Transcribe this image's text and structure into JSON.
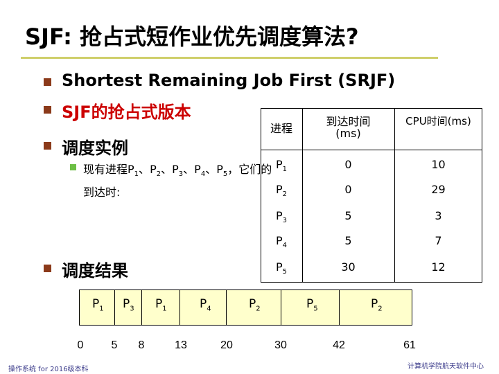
{
  "title": "SJF: 抢占式短作业优先调度算法?",
  "bullets": [
    {
      "text": "Shortest Remaining Job First (SRJF)",
      "color": "#000000"
    },
    {
      "text": "SJF的抢占式版本",
      "color": "#cc0000"
    },
    {
      "text": "调度实例"
    },
    {
      "text": "调度结果"
    }
  ],
  "example": {
    "line1_prefix": "现有进程",
    "line1_suffix": "，它们的",
    "line2": "到达时:",
    "procs": [
      {
        "label": "P",
        "sub": "1",
        "sep": "、"
      },
      {
        "label": "P",
        "sub": "2",
        "sep": "、"
      },
      {
        "label": "P",
        "sub": "3",
        "sep": "、"
      },
      {
        "label": "P",
        "sub": "4",
        "sep": "、"
      },
      {
        "label": "P",
        "sub": "5",
        "sep": ""
      }
    ]
  },
  "table": {
    "headers": {
      "process": "进程",
      "arrival": "到达时间",
      "arrival_unit": "(ms)",
      "burst": "CPU时间(ms)"
    },
    "rows": [
      {
        "p": "P",
        "sub": "1",
        "arrival": "0",
        "burst": "10"
      },
      {
        "p": "P",
        "sub": "2",
        "arrival": "0",
        "burst": "29"
      },
      {
        "p": "P",
        "sub": "3",
        "arrival": "5",
        "burst": "3"
      },
      {
        "p": "P",
        "sub": "4",
        "arrival": "5",
        "burst": "7"
      },
      {
        "p": "P",
        "sub": "5",
        "arrival": "30",
        "burst": "12"
      }
    ]
  },
  "gantt": {
    "segments": [
      {
        "p": "P",
        "sub": "1"
      },
      {
        "p": "P",
        "sub": "3"
      },
      {
        "p": "P",
        "sub": "1"
      },
      {
        "p": "P",
        "sub": "4"
      },
      {
        "p": "P",
        "sub": "2"
      },
      {
        "p": "P",
        "sub": "5"
      },
      {
        "p": "P",
        "sub": "2"
      }
    ],
    "ticks": [
      "0",
      "5",
      "8",
      "13",
      "20",
      "30",
      "42",
      "61"
    ]
  },
  "footer": {
    "left": "操作系统 for 2016级本科",
    "right": "计算机学院航天软件中心"
  },
  "colors": {
    "title_rule": "#cfcf6a",
    "bullet": "#8b3a1a",
    "sub_bullet": "#6cbe45",
    "gantt_fill": "#ffffcc",
    "footer": "#3a3a8a"
  }
}
